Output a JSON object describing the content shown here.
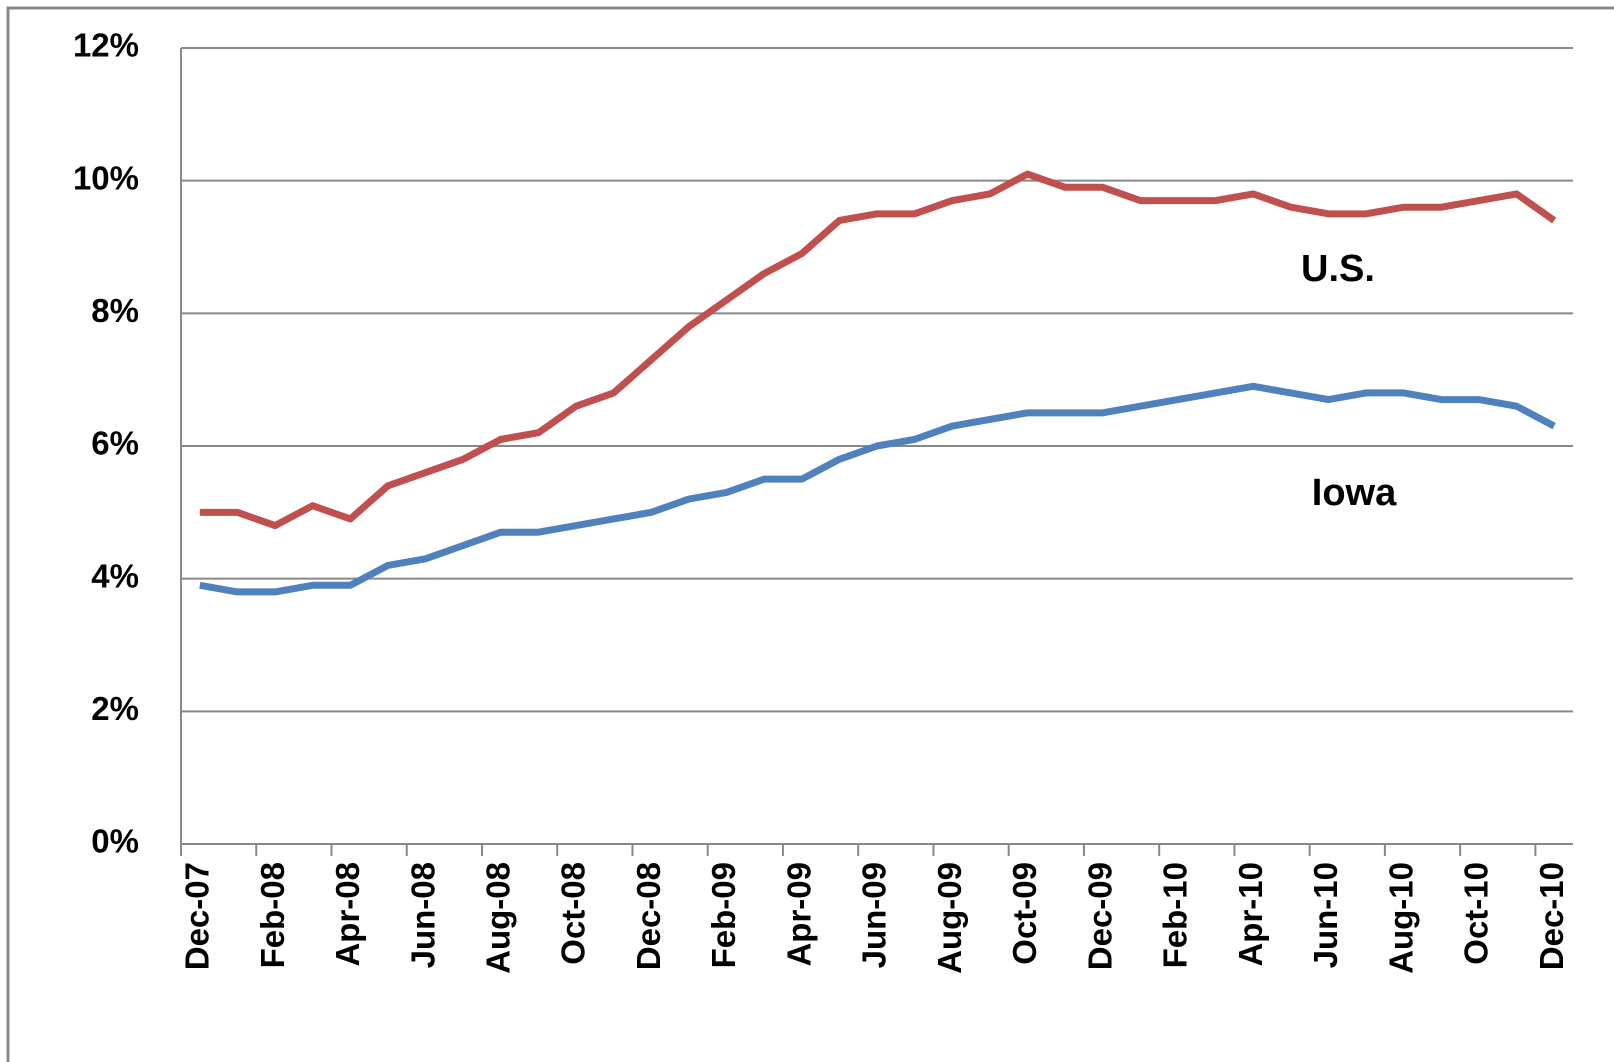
{
  "chart_data": {
    "type": "line",
    "categories": [
      "Dec-07",
      null,
      "Feb-08",
      null,
      "Apr-08",
      null,
      "Jun-08",
      null,
      "Aug-08",
      null,
      "Oct-08",
      null,
      "Dec-08",
      null,
      "Feb-09",
      null,
      "Apr-09",
      null,
      "Jun-09",
      null,
      "Aug-09",
      null,
      "Oct-09",
      null,
      "Dec-09",
      null,
      "Feb-10",
      null,
      "Apr-10",
      null,
      "Jun-10",
      null,
      "Aug-10",
      null,
      "Oct-10",
      null,
      "Dec-10"
    ],
    "series": [
      {
        "name": "U.S.",
        "color": "#c0504d",
        "values": [
          5.0,
          5.0,
          4.8,
          5.1,
          4.9,
          5.4,
          5.6,
          5.8,
          6.1,
          6.2,
          6.6,
          6.8,
          7.3,
          7.8,
          8.2,
          8.6,
          8.9,
          9.4,
          9.5,
          9.5,
          9.7,
          9.8,
          10.1,
          9.9,
          9.9,
          9.7,
          9.7,
          9.7,
          9.8,
          9.6,
          9.5,
          9.5,
          9.6,
          9.6,
          9.7,
          9.8,
          9.4
        ]
      },
      {
        "name": "Iowa",
        "color": "#4f81bd",
        "values": [
          3.9,
          3.8,
          3.8,
          3.9,
          3.9,
          4.2,
          4.3,
          4.5,
          4.7,
          4.7,
          4.8,
          4.9,
          5.0,
          5.2,
          5.3,
          5.5,
          5.5,
          5.8,
          6.0,
          6.1,
          6.3,
          6.4,
          6.5,
          6.5,
          6.5,
          6.6,
          6.7,
          6.8,
          6.9,
          6.8,
          6.7,
          6.8,
          6.8,
          6.7,
          6.7,
          6.6,
          6.3
        ]
      }
    ],
    "ylim": [
      0,
      12
    ],
    "yticks": [
      {
        "value": 0,
        "label": "0%"
      },
      {
        "value": 2,
        "label": "2%"
      },
      {
        "value": 4,
        "label": "4%"
      },
      {
        "value": 6,
        "label": "6%"
      },
      {
        "value": 8,
        "label": "8%"
      },
      {
        "value": 10,
        "label": "10%"
      },
      {
        "value": 12,
        "label": "12%"
      }
    ],
    "grid": true
  }
}
